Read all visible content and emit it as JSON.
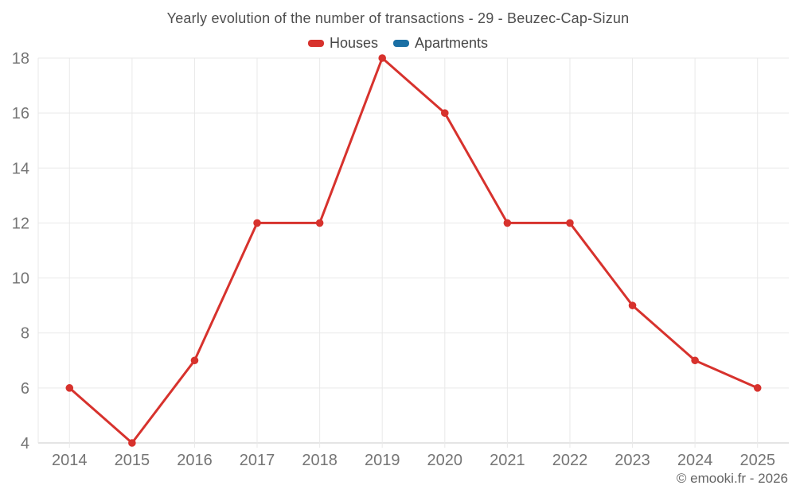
{
  "chart_data": {
    "type": "line",
    "title": "Yearly evolution of the number of transactions - 29 - Beuzec-Cap-Sizun",
    "categories": [
      "2014",
      "2015",
      "2016",
      "2017",
      "2018",
      "2019",
      "2020",
      "2021",
      "2022",
      "2023",
      "2024",
      "2025"
    ],
    "series": [
      {
        "name": "Houses",
        "color": "#d7322d",
        "values": [
          6,
          4,
          7,
          12,
          12,
          18,
          16,
          12,
          12,
          9,
          7,
          6
        ]
      },
      {
        "name": "Apartments",
        "color": "#1a6fa4",
        "values": []
      }
    ],
    "xlabel": "",
    "ylabel": "",
    "ylim": [
      4,
      18
    ],
    "ytick_step": 2,
    "grid": true,
    "legend_position": "top",
    "watermark": "© emooki.fr - 2026",
    "style": {
      "gridline": "#e9e9e9",
      "axis_line": "#c9c9c9",
      "tick_label": "#757575",
      "title_text": "#4e4e4e"
    }
  }
}
